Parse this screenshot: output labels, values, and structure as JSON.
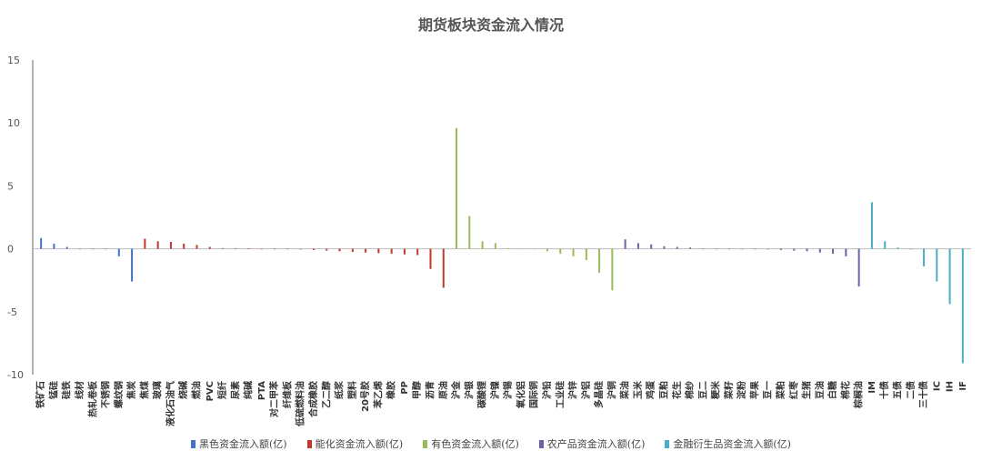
{
  "chart_data": {
    "type": "bar",
    "title": "期货板块资金流入情况",
    "xlabel": "",
    "ylabel": "",
    "ylim": [
      -10,
      15
    ],
    "yticks": [
      15,
      10,
      5,
      0,
      -5,
      -10
    ],
    "grid": false,
    "legend_position": "bottom",
    "series": [
      {
        "name": "黑色资金流入额(亿)",
        "color": "#4472C4",
        "items": [
          [
            "铁矿石",
            0.85
          ],
          [
            "锰硅",
            0.4
          ],
          [
            "硅铁",
            0.15
          ],
          [
            "线材",
            0
          ],
          [
            "热轧卷板",
            0
          ],
          [
            "不锈钢",
            0
          ],
          [
            "螺纹钢",
            -0.6
          ],
          [
            "焦炭",
            -2.6
          ]
        ]
      },
      {
        "name": "能化资金流入额(亿)",
        "color": "#C0392B",
        "items": [
          [
            "焦煤",
            0.8
          ],
          [
            "玻璃",
            0.6
          ],
          [
            "液化石油气",
            0.55
          ],
          [
            "烧碱",
            0.4
          ],
          [
            "燃油",
            0.3
          ],
          [
            "PVC",
            0.15
          ],
          [
            "短纤",
            0.05
          ],
          [
            "尿素",
            0.05
          ],
          [
            "纯碱",
            0.03
          ],
          [
            "PTA",
            0
          ],
          [
            "对二甲苯",
            0
          ],
          [
            "纤维板",
            0
          ],
          [
            "低硫燃料油",
            -0.05
          ],
          [
            "合成橡胶",
            -0.1
          ],
          [
            "乙二醇",
            -0.15
          ],
          [
            "纸浆",
            -0.2
          ],
          [
            "塑料",
            -0.25
          ],
          [
            "20号胶",
            -0.3
          ],
          [
            "苯乙烯",
            -0.35
          ],
          [
            "橡胶",
            -0.4
          ],
          [
            "PP",
            -0.45
          ],
          [
            "甲醇",
            -0.5
          ],
          [
            "沥青",
            -1.6
          ],
          [
            "原油",
            -3.1
          ]
        ]
      },
      {
        "name": "有色资金流入额(亿)",
        "color": "#9BBB59",
        "items": [
          [
            "沪金",
            9.6
          ],
          [
            "沪银",
            2.6
          ],
          [
            "碳酸锂",
            0.6
          ],
          [
            "沪镍",
            0.45
          ],
          [
            "沪锡",
            0.05
          ],
          [
            "氧化铝",
            0
          ],
          [
            "国际铜",
            0
          ],
          [
            "沪铅",
            -0.2
          ],
          [
            "工业硅",
            -0.4
          ],
          [
            "沪锌",
            -0.6
          ],
          [
            "沪铝",
            -0.9
          ],
          [
            "多晶硅",
            -1.9
          ],
          [
            "沪铜",
            -3.3
          ]
        ]
      },
      {
        "name": "农产品资金流入额(亿)",
        "color": "#7060A8",
        "items": [
          [
            "菜油",
            0.75
          ],
          [
            "玉米",
            0.45
          ],
          [
            "鸡蛋",
            0.35
          ],
          [
            "豆粕",
            0.2
          ],
          [
            "花生",
            0.15
          ],
          [
            "棉纱",
            0.1
          ],
          [
            "豆二",
            0
          ],
          [
            "粳米",
            0
          ],
          [
            "菜籽",
            0
          ],
          [
            "淀粉",
            0
          ],
          [
            "苹果",
            0
          ],
          [
            "豆一",
            -0.05
          ],
          [
            "菜粕",
            -0.1
          ],
          [
            "红枣",
            -0.15
          ],
          [
            "生猪",
            -0.2
          ],
          [
            "豆油",
            -0.3
          ],
          [
            "白糖",
            -0.4
          ],
          [
            "棉花",
            -0.6
          ],
          [
            "棕榈油",
            -3.0
          ]
        ]
      },
      {
        "name": "金融衍生品资金流入额(亿)",
        "color": "#4BACC6",
        "items": [
          [
            "IM",
            3.7
          ],
          [
            "十债",
            0.6
          ],
          [
            "五债",
            0.1
          ],
          [
            "二债",
            -0.05
          ],
          [
            "三十债",
            -1.4
          ],
          [
            "IC",
            -2.6
          ],
          [
            "IH",
            -4.4
          ],
          [
            "IF",
            -9.1
          ]
        ]
      }
    ]
  }
}
